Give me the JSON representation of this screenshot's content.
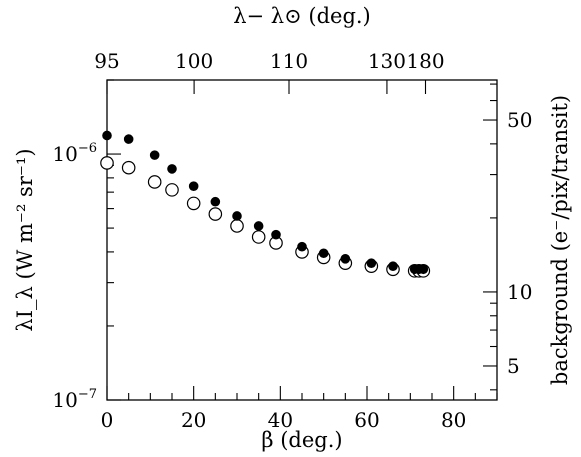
{
  "chart_data": {
    "type": "scatter",
    "xlabel": "β (deg.)",
    "top_xlabel": "λ− λ⊙ (deg.)",
    "ylabel_left": "λI_λ (W m⁻² sr⁻¹)",
    "ylabel_right": "background (e⁻/pix/transit)",
    "xlim": [
      0,
      90
    ],
    "ylim": [
      1e-07,
      2e-06
    ],
    "yscale": "log",
    "x_ticks": [
      0,
      20,
      40,
      60,
      80
    ],
    "x_tick_labels": [
      "0",
      "20",
      "40",
      "60",
      "80"
    ],
    "left_major_ticks": [
      {
        "value": 1e-07,
        "base": "10",
        "exp": "−7"
      },
      {
        "value": 1e-06,
        "base": "10",
        "exp": "−6"
      }
    ],
    "right_ticks": [
      {
        "label": "5",
        "value": 5
      },
      {
        "label": "10",
        "value": 10
      },
      {
        "label": "50",
        "value": 50
      }
    ],
    "right_scale_note": "right axis value 10 corresponds to left axis 2.75e-7",
    "top_ticks": [
      {
        "label": "95",
        "beta": 0
      },
      {
        "label": "100",
        "beta": 20.1
      },
      {
        "label": "110",
        "beta": 42.0
      },
      {
        "label": "130",
        "beta": 64.6
      },
      {
        "label": "180",
        "beta": 73.5
      }
    ],
    "series": [
      {
        "marker": "filled",
        "x": [
          0,
          5,
          11,
          15,
          20,
          25,
          30,
          35,
          39,
          45,
          50,
          55,
          61,
          66,
          71,
          72,
          73
        ],
        "y": [
          1.19e-06,
          1.15e-06,
          9.9e-07,
          8.7e-07,
          7.4e-07,
          6.4e-07,
          5.6e-07,
          5.1e-07,
          4.7e-07,
          4.2e-07,
          3.95e-07,
          3.75e-07,
          3.6e-07,
          3.5e-07,
          3.4e-07,
          3.4e-07,
          3.4e-07
        ]
      },
      {
        "marker": "open",
        "x": [
          0,
          5,
          11,
          15,
          20,
          25,
          30,
          35,
          39,
          45,
          50,
          55,
          61,
          66,
          71,
          72,
          73
        ],
        "y": [
          9.2e-07,
          8.8e-07,
          7.7e-07,
          7.15e-07,
          6.3e-07,
          5.7e-07,
          5.1e-07,
          4.6e-07,
          4.35e-07,
          4e-07,
          3.8e-07,
          3.6e-07,
          3.5e-07,
          3.4e-07,
          3.35e-07,
          3.35e-07,
          3.35e-07
        ]
      }
    ]
  }
}
